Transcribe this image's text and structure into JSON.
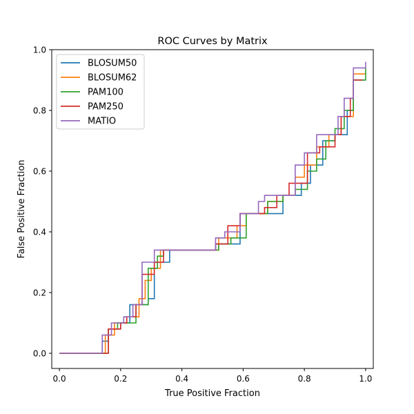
{
  "chart_data": {
    "type": "line",
    "title": "ROC Curves by Matrix",
    "xlabel": "True Positive Fraction",
    "ylabel": "False Positive Fraction",
    "xlim": [
      -0.025,
      1.025
    ],
    "ylim": [
      -0.05,
      1.0
    ],
    "xticks": [
      0.0,
      0.2,
      0.4,
      0.6,
      0.8,
      1.0
    ],
    "yticks": [
      0.0,
      0.2,
      0.4,
      0.6,
      0.8,
      1.0
    ],
    "xtick_labels": [
      "0.0",
      "0.2",
      "0.4",
      "0.6",
      "0.8",
      "1.0"
    ],
    "ytick_labels": [
      "0.0",
      "0.2",
      "0.4",
      "0.6",
      "0.8",
      "1.0"
    ],
    "grid": false,
    "legend_position": "upper-left",
    "series": [
      {
        "name": "BLOSUM50",
        "color": "#1f77b4",
        "points": [
          [
            0.0,
            0.0
          ],
          [
            0.13,
            0.0
          ],
          [
            0.14,
            0.04
          ],
          [
            0.16,
            0.08
          ],
          [
            0.2,
            0.1
          ],
          [
            0.23,
            0.16
          ],
          [
            0.26,
            0.16
          ],
          [
            0.29,
            0.18
          ],
          [
            0.31,
            0.3
          ],
          [
            0.36,
            0.34
          ],
          [
            0.51,
            0.36
          ],
          [
            0.59,
            0.46
          ],
          [
            0.67,
            0.46
          ],
          [
            0.73,
            0.52
          ],
          [
            0.79,
            0.56
          ],
          [
            0.82,
            0.62
          ],
          [
            0.86,
            0.7
          ],
          [
            0.9,
            0.72
          ],
          [
            0.94,
            0.8
          ],
          [
            0.96,
            0.9
          ],
          [
            1.0,
            0.9
          ]
        ]
      },
      {
        "name": "BLOSUM62",
        "color": "#ff7f0e",
        "points": [
          [
            0.0,
            0.0
          ],
          [
            0.13,
            0.0
          ],
          [
            0.15,
            0.06
          ],
          [
            0.18,
            0.1
          ],
          [
            0.22,
            0.12
          ],
          [
            0.26,
            0.18
          ],
          [
            0.28,
            0.24
          ],
          [
            0.3,
            0.28
          ],
          [
            0.33,
            0.34
          ],
          [
            0.49,
            0.34
          ],
          [
            0.52,
            0.38
          ],
          [
            0.58,
            0.42
          ],
          [
            0.61,
            0.46
          ],
          [
            0.68,
            0.5
          ],
          [
            0.73,
            0.52
          ],
          [
            0.77,
            0.58
          ],
          [
            0.8,
            0.62
          ],
          [
            0.84,
            0.68
          ],
          [
            0.88,
            0.72
          ],
          [
            0.92,
            0.78
          ],
          [
            0.96,
            0.92
          ],
          [
            1.0,
            0.92
          ]
        ]
      },
      {
        "name": "PAM100",
        "color": "#2ca02c",
        "points": [
          [
            0.0,
            0.0
          ],
          [
            0.13,
            0.0
          ],
          [
            0.16,
            0.08
          ],
          [
            0.19,
            0.1
          ],
          [
            0.23,
            0.1
          ],
          [
            0.25,
            0.16
          ],
          [
            0.29,
            0.28
          ],
          [
            0.32,
            0.32
          ],
          [
            0.34,
            0.34
          ],
          [
            0.49,
            0.34
          ],
          [
            0.52,
            0.36
          ],
          [
            0.56,
            0.38
          ],
          [
            0.61,
            0.46
          ],
          [
            0.68,
            0.5
          ],
          [
            0.73,
            0.52
          ],
          [
            0.77,
            0.54
          ],
          [
            0.81,
            0.6
          ],
          [
            0.84,
            0.64
          ],
          [
            0.87,
            0.7
          ],
          [
            0.9,
            0.74
          ],
          [
            0.93,
            0.8
          ],
          [
            0.96,
            0.9
          ],
          [
            1.0,
            0.94
          ]
        ]
      },
      {
        "name": "PAM250",
        "color": "#d62728",
        "points": [
          [
            0.0,
            0.0
          ],
          [
            0.14,
            0.0
          ],
          [
            0.16,
            0.08
          ],
          [
            0.2,
            0.1
          ],
          [
            0.22,
            0.12
          ],
          [
            0.25,
            0.16
          ],
          [
            0.27,
            0.26
          ],
          [
            0.31,
            0.3
          ],
          [
            0.34,
            0.34
          ],
          [
            0.49,
            0.34
          ],
          [
            0.51,
            0.36
          ],
          [
            0.55,
            0.42
          ],
          [
            0.59,
            0.46
          ],
          [
            0.67,
            0.48
          ],
          [
            0.71,
            0.52
          ],
          [
            0.75,
            0.56
          ],
          [
            0.81,
            0.66
          ],
          [
            0.85,
            0.68
          ],
          [
            0.9,
            0.72
          ],
          [
            0.92,
            0.78
          ],
          [
            0.95,
            0.84
          ],
          [
            0.96,
            0.9
          ],
          [
            0.99,
            0.9
          ]
        ]
      },
      {
        "name": "MATIO",
        "color": "#9467bd",
        "points": [
          [
            0.0,
            0.0
          ],
          [
            0.12,
            0.0
          ],
          [
            0.14,
            0.06
          ],
          [
            0.17,
            0.1
          ],
          [
            0.21,
            0.12
          ],
          [
            0.24,
            0.16
          ],
          [
            0.27,
            0.3
          ],
          [
            0.31,
            0.34
          ],
          [
            0.48,
            0.34
          ],
          [
            0.51,
            0.38
          ],
          [
            0.54,
            0.4
          ],
          [
            0.59,
            0.46
          ],
          [
            0.65,
            0.5
          ],
          [
            0.67,
            0.52
          ],
          [
            0.71,
            0.52
          ],
          [
            0.77,
            0.62
          ],
          [
            0.8,
            0.66
          ],
          [
            0.84,
            0.72
          ],
          [
            0.91,
            0.78
          ],
          [
            0.93,
            0.84
          ],
          [
            0.96,
            0.94
          ],
          [
            1.0,
            0.96
          ]
        ]
      }
    ]
  }
}
